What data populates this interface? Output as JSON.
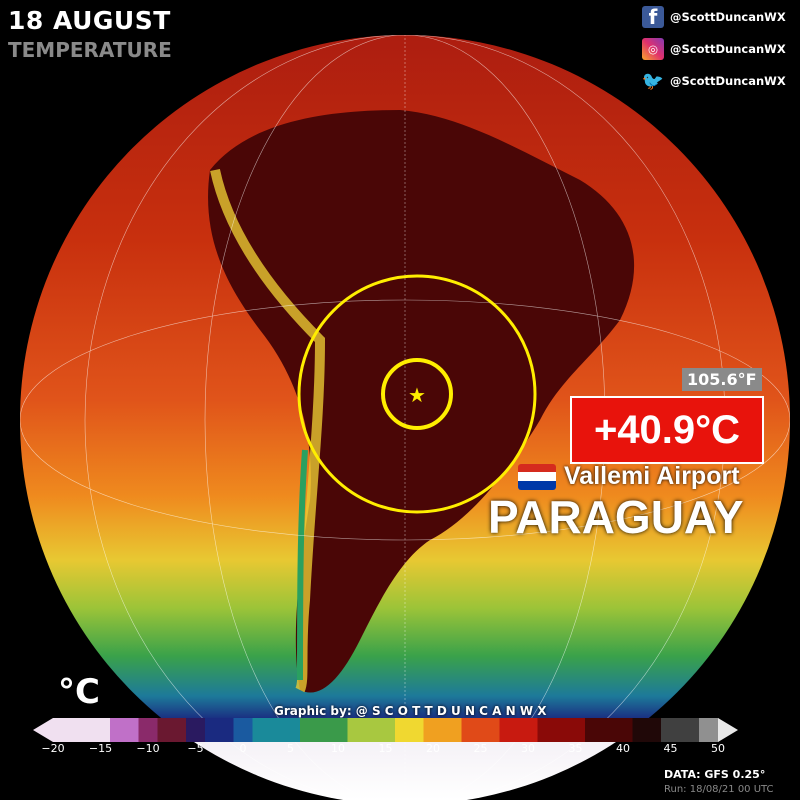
{
  "header": {
    "title": "18 AUGUST",
    "subtitle": "TEMPERATURE"
  },
  "social": [
    {
      "icon": "facebook-icon",
      "handle": "@ScottDuncanWX"
    },
    {
      "icon": "instagram-icon",
      "handle": "@ScottDuncanWX"
    },
    {
      "icon": "twitter-icon",
      "handle": "@ScottDuncanWX"
    }
  ],
  "highlight": {
    "fahrenheit": "105.6°F",
    "celsius": "+40.9°C",
    "station": "Vallemi Airport",
    "country": "PARAGUAY",
    "flag_colors": [
      "#d52b1e",
      "#ffffff",
      "#0038a8"
    ]
  },
  "legend": {
    "unit": "°C",
    "ticks": [
      "−20",
      "−15",
      "−10",
      "−5",
      "0",
      "5",
      "10",
      "15",
      "20",
      "25",
      "30",
      "35",
      "40",
      "45",
      "50"
    ],
    "range": [
      -20,
      50
    ]
  },
  "footer": {
    "credit": "Graphic by: @ S C O T T D U N C A N W X",
    "data_source": "DATA: GFS 0.25°",
    "run": "Run: 18/08/21 00 UTC"
  },
  "colors": {
    "marker": "#ffee00",
    "highlight_box": "#e8130c"
  }
}
